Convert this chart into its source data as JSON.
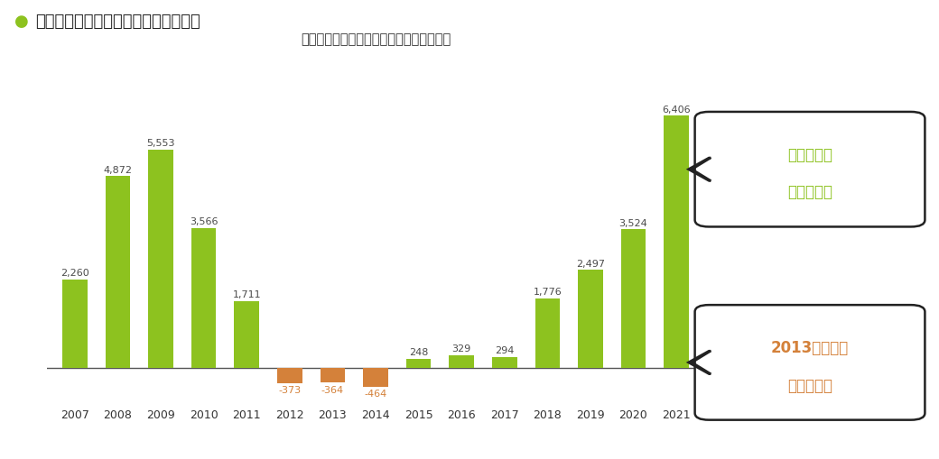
{
  "years": [
    2007,
    2008,
    2009,
    2010,
    2011,
    2012,
    2013,
    2014,
    2015,
    2016,
    2017,
    2018,
    2019,
    2020,
    2021
  ],
  "values": [
    2260,
    4872,
    5553,
    3566,
    1711,
    -373,
    -364,
    -464,
    248,
    329,
    294,
    1776,
    2497,
    3524,
    6406
  ],
  "bar_colors_positive": "#8dc21f",
  "bar_colors_negative": "#d4813a",
  "background_color": "#ffffff",
  "subtitle": "任天堂：営業利益（損失）の推移（億円）",
  "main_title": "仕説を検証：任天堂はずっと好業績？",
  "annotation_top_line1": "近年業績が",
  "annotation_top_line2": "大きく回復",
  "annotation_bottom_line1": "2013年前後は",
  "annotation_bottom_line2": "赤字が続く",
  "annotation_top_color": "#8dc21f",
  "annotation_bottom_color": "#d4813a",
  "label_color_positive": "#4a4a4a",
  "label_color_negative": "#d4813a",
  "ylim_min": -900,
  "ylim_max": 7500
}
